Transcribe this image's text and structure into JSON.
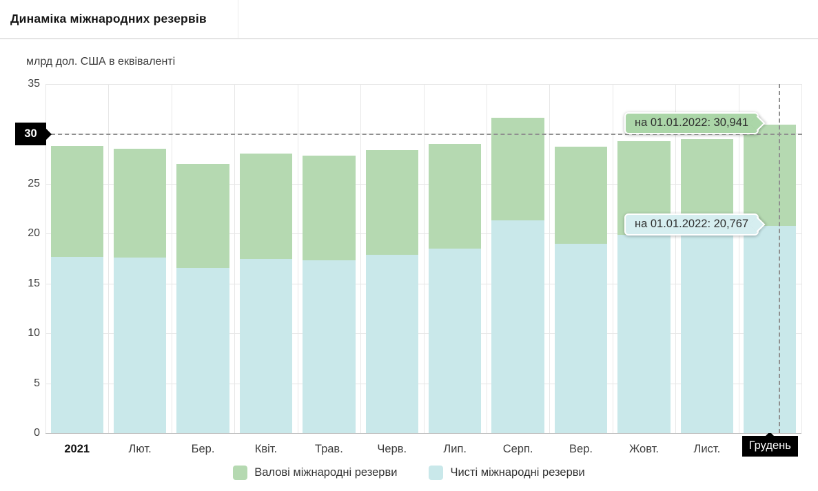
{
  "header": {
    "title": "Динаміка міжнародних резервів"
  },
  "chart_data": {
    "type": "bar",
    "subtype": "overlay-stacked-monthly",
    "title": "Динаміка міжнародних резервів",
    "unit_label": "млрд дол. США в еквіваленті",
    "categories": [
      "2021",
      "Лют.",
      "Бер.",
      "Квіт.",
      "Трав.",
      "Черв.",
      "Лип.",
      "Серп.",
      "Вер.",
      "Жовт.",
      "Лист.",
      "Грудень"
    ],
    "series": [
      {
        "name": "Валові міжнародні резерви",
        "color": "#b5d9b1",
        "values": [
          28.8,
          28.5,
          27.0,
          28.0,
          27.8,
          28.4,
          29.0,
          31.6,
          28.7,
          29.3,
          29.5,
          30.941
        ]
      },
      {
        "name": "Чисті міжнародні резерви",
        "color": "#c9e8ea",
        "values": [
          17.7,
          17.6,
          16.6,
          17.5,
          17.3,
          17.9,
          18.5,
          21.3,
          19.0,
          19.9,
          20.2,
          20.767
        ]
      }
    ],
    "ylim": [
      0,
      35
    ],
    "yticks": [
      0,
      5,
      10,
      15,
      20,
      25,
      30,
      35
    ],
    "grid": true,
    "legend_position": "bottom",
    "highlight": {
      "y_value": 30,
      "y_label": "30",
      "x_category": "Грудень",
      "tooltips": [
        {
          "text": "на 01.01.2022: 30,941",
          "series": "Валові міжнародні резерви",
          "color": "#abd6a8"
        },
        {
          "text": "на 01.01.2022: 20,767",
          "series": "Чисті міжнародні резерви",
          "color": "#d6eef0"
        }
      ]
    }
  },
  "colors": {
    "gross_bar": "#b5d9b1",
    "net_bar": "#c9e8ea",
    "tooltip_gross_bg": "#abd6a8",
    "tooltip_net_bg": "#d6eef0",
    "grid": "#e4e4e4",
    "axis_line": "#c4c4c4",
    "dashed_line": "#8f8f8f",
    "highlight_box_bg": "#000000",
    "highlight_box_text": "#ffffff",
    "text": "#3d3d3d"
  }
}
